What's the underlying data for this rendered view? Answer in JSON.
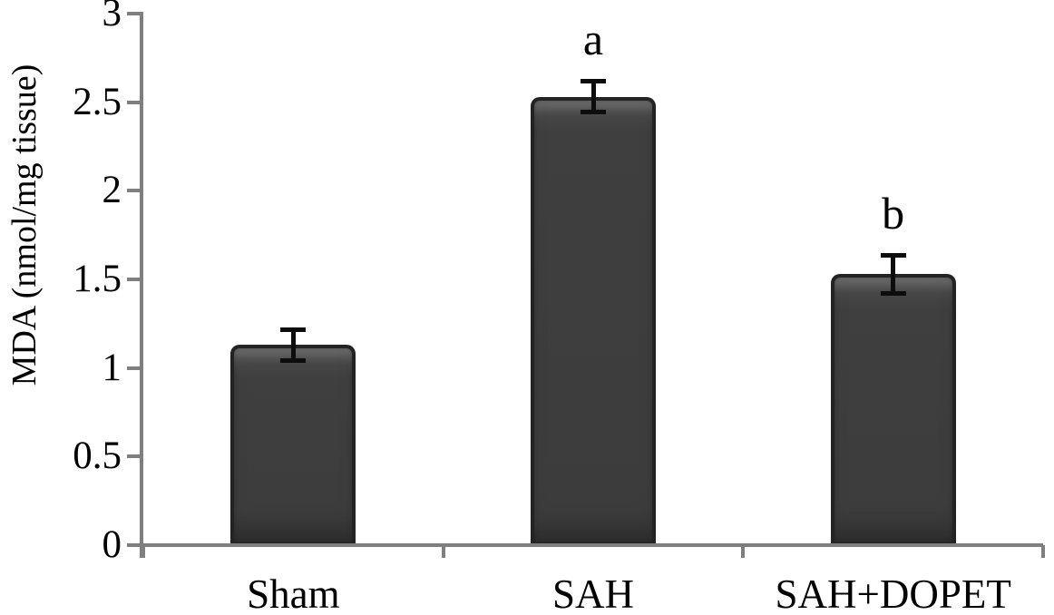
{
  "chart_data": {
    "type": "bar",
    "title": "",
    "xlabel": "",
    "ylabel": "MDA (nmol/mg tissue)",
    "categories": [
      "Sham",
      "SAH",
      "SAH+DOPET"
    ],
    "values": [
      1.13,
      2.53,
      1.53
    ],
    "errors": [
      0.1,
      0.1,
      0.12
    ],
    "sig_labels": [
      "",
      "a",
      "b"
    ],
    "ylim": [
      0,
      3
    ],
    "ytick_values": [
      0,
      0.5,
      1,
      1.5,
      2,
      2.5,
      3
    ],
    "ytick_labels": [
      "0",
      "0.5",
      "1",
      "1.5",
      "2",
      "2.5",
      "3"
    ],
    "grid": false,
    "legend": null,
    "colors": {
      "background": "#ffffff",
      "bar_fill": "#3f3f3f",
      "bar_fill_top": "#585858",
      "bar_edge": "#232323",
      "axis": "#7f7f7f",
      "error_bar": "#0d0d0d",
      "text": "#000000"
    }
  }
}
